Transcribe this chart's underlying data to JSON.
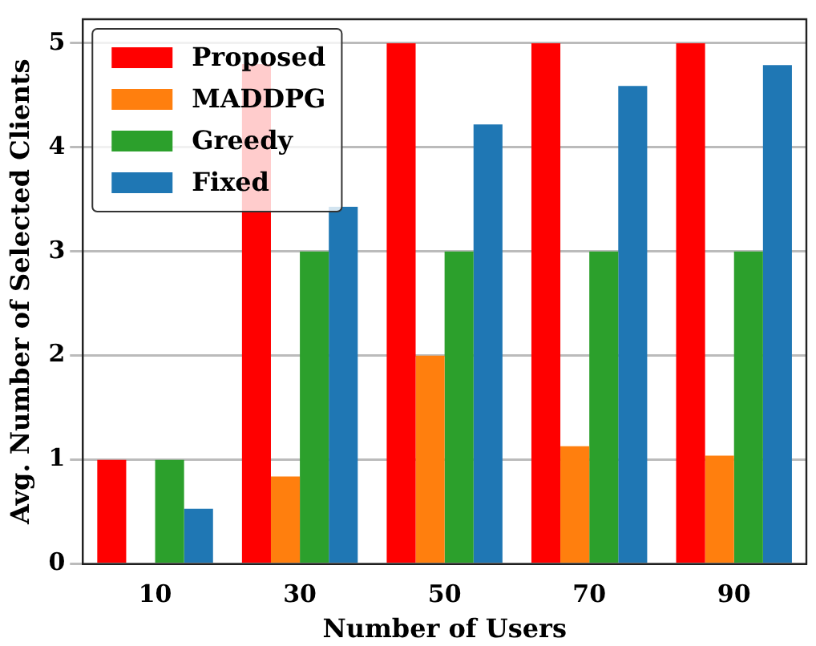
{
  "chart_data": {
    "type": "bar",
    "xlabel": "Number of Users",
    "ylabel": "Avg. Number of Selected Clients",
    "categories": [
      "10",
      "30",
      "50",
      "70",
      "90"
    ],
    "series": [
      {
        "name": "Proposed",
        "color": "#ff0000",
        "values": [
          1,
          4.8,
          5,
          5,
          5
        ]
      },
      {
        "name": "MADDPG",
        "color": "#ff7f0e",
        "values": [
          0,
          0.84,
          2.0,
          1.13,
          1.04
        ]
      },
      {
        "name": "Greedy",
        "color": "#2ca02c",
        "values": [
          1,
          3,
          3,
          3,
          3
        ]
      },
      {
        "name": "Fixed",
        "color": "#1f77b4",
        "values": [
          0.53,
          3.43,
          4.22,
          4.59,
          4.79
        ]
      }
    ],
    "ylim": [
      0,
      5.23
    ],
    "yticks": [
      0,
      1,
      2,
      3,
      4,
      5
    ],
    "grid": "y",
    "legend": "top left"
  }
}
